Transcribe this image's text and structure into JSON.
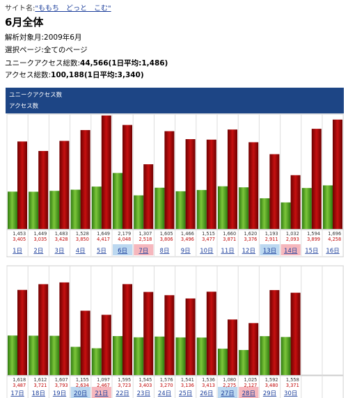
{
  "site": {
    "label": "サイト名:",
    "name": "\"ももち　どっと　こむ\""
  },
  "month_title": "6月全体",
  "info": {
    "period": "解析対象月:2009年6月",
    "pages": "選択ページ:全てのページ",
    "ua_label": "ユニークアクセス総数:",
    "ua_value": "44,566(1日平均:1,486)",
    "acc_label": "アクセス総数:",
    "acc_value": "100,188(1日平均:3,340)"
  },
  "legend": {
    "unique": "ユニークアクセス数",
    "access": "アクセス数"
  },
  "colors": {
    "unique": "#4a9a1c",
    "access": "#a50000",
    "header": "#1d4585",
    "saturday_bg": "#bcd8f0",
    "sunday_bg": "#f6b7bd",
    "count_access": "#c00000"
  },
  "chart_data": {
    "type": "bar",
    "categories": [
      "1日",
      "2日",
      "3日",
      "4日",
      "5日",
      "6日",
      "7日",
      "8日",
      "9日",
      "10日",
      "11日",
      "12日",
      "13日",
      "14日",
      "15日",
      "16日",
      "17日",
      "18日",
      "19日",
      "20日",
      "21日",
      "22日",
      "23日",
      "24日",
      "25日",
      "26日",
      "27日",
      "28日",
      "29日",
      "30日"
    ],
    "series": [
      {
        "name": "ユニークアクセス数",
        "values": [
          1453,
          1449,
          1483,
          1528,
          1649,
          2179,
          1307,
          1605,
          1466,
          1515,
          1660,
          1620,
          1193,
          1032,
          1594,
          1696,
          1618,
          1612,
          1607,
          1155,
          1097,
          1595,
          1545,
          1576,
          1541,
          1536,
          1080,
          1025,
          1592,
          1558
        ],
        "labels": [
          "1,453",
          "1,449",
          "1,483",
          "1,528",
          "1,649",
          "2,179",
          "1,307",
          "1,605",
          "1,466",
          "1,515",
          "1,660",
          "1,620",
          "1,193",
          "1,032",
          "1,594",
          "1,696",
          "1,618",
          "1,612",
          "1,607",
          "1,155",
          "1,097",
          "1,595",
          "1,545",
          "1,576",
          "1,541",
          "1,536",
          "1,080",
          "1,025",
          "1,592",
          "1,558"
        ]
      },
      {
        "name": "アクセス数",
        "values": [
          3405,
          3035,
          3428,
          3850,
          4417,
          4048,
          2518,
          3806,
          3496,
          3477,
          3871,
          3376,
          2911,
          2093,
          3899,
          4258,
          3487,
          3721,
          3793,
          2634,
          2467,
          3723,
          3403,
          3270,
          3136,
          3413,
          2275,
          2127,
          3480,
          3371
        ],
        "labels": [
          "3,405",
          "3,035",
          "3,428",
          "3,850",
          "4,417",
          "4,048",
          "2,518",
          "3,806",
          "3,496",
          "3,477",
          "3,871",
          "3,376",
          "2,911",
          "2,093",
          "3,899",
          "4,258",
          "3,487",
          "3,721",
          "3,793",
          "2,634",
          "2,467",
          "3,723",
          "3,403",
          "3,270",
          "3,136",
          "3,413",
          "2,275",
          "2,127",
          "3,480",
          "3,371"
        ]
      }
    ],
    "saturdays": [
      "6日",
      "13日",
      "20日",
      "27日"
    ],
    "sundays": [
      "7日",
      "14日",
      "21日",
      "28日"
    ],
    "ymax": 4417
  }
}
